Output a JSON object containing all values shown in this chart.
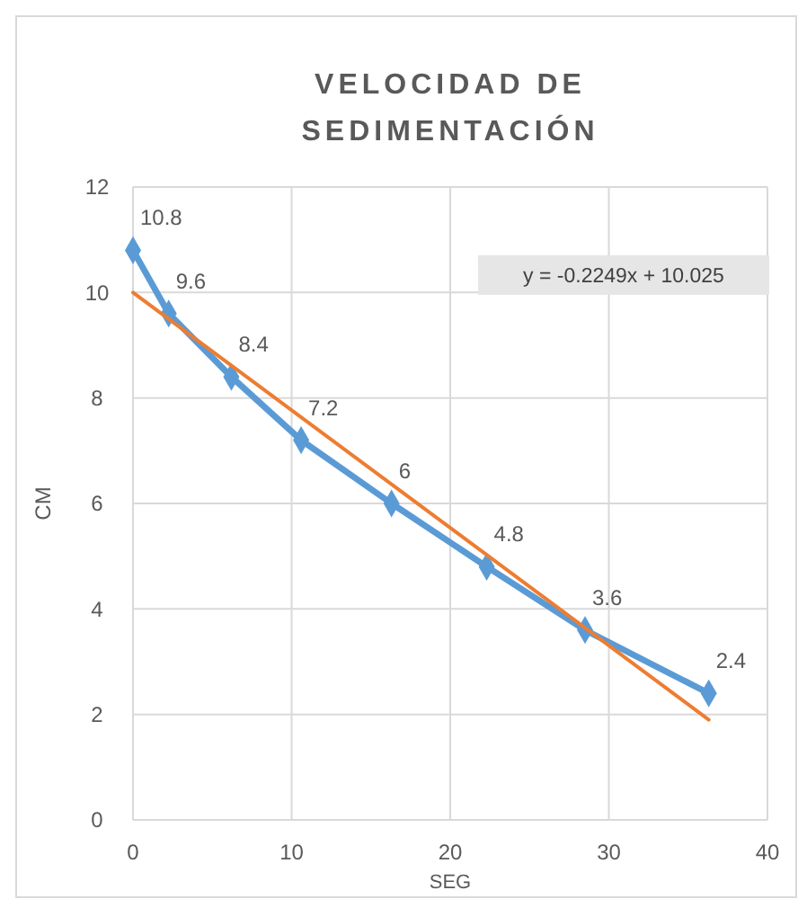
{
  "chart_data": {
    "type": "line",
    "title": "VELOCIDAD DE SEDIMENTACIÓN",
    "xlabel": "SEG",
    "ylabel": "CM",
    "x": [
      0,
      2.25,
      6.2,
      10.6,
      16.3,
      22.3,
      28.5,
      36.3
    ],
    "series": [
      {
        "color": "#5b9bd5",
        "values": [
          10.8,
          9.6,
          8.4,
          7.2,
          6,
          4.8,
          3.6,
          2.4
        ],
        "marker": "diamond",
        "value_labels": [
          "10.8",
          "9.6",
          "8.4",
          "7.2",
          "6",
          "4.8",
          "3.6",
          "2.4"
        ]
      },
      {
        "type": "line",
        "color": "#ed7d31",
        "x": [
          0,
          36.3
        ],
        "values": [
          10,
          1.9
        ],
        "marker": "none"
      }
    ],
    "annotations": [
      "y = -0.2249x + 10.025"
    ],
    "xlim": [
      0,
      40
    ],
    "xticks": [
      0,
      10,
      20,
      30,
      40
    ],
    "ylim": [
      0,
      12
    ],
    "yticks": [
      0,
      2,
      4,
      6,
      8,
      10,
      12
    ],
    "grid": true
  }
}
